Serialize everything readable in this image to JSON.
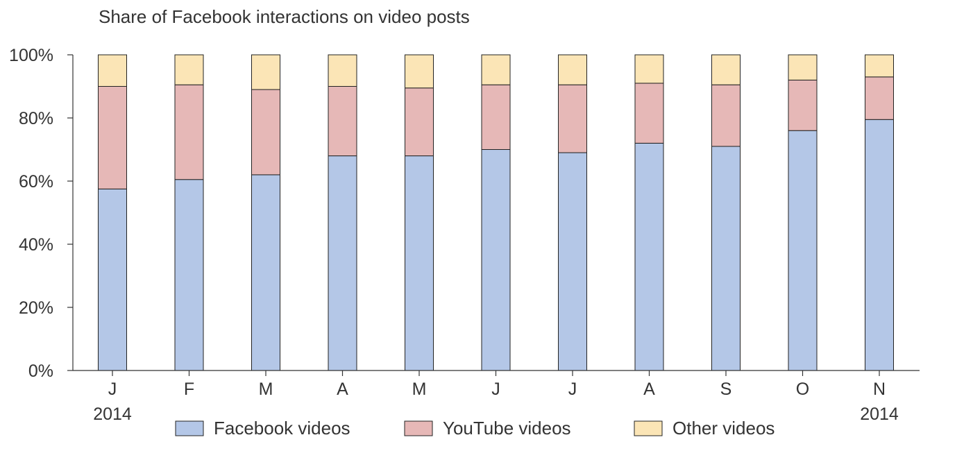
{
  "chart_data": {
    "type": "bar",
    "stacked": true,
    "title": "Share of Facebook interactions on video posts",
    "categories": [
      "J",
      "F",
      "M",
      "A",
      "M",
      "J",
      "J",
      "A",
      "S",
      "O",
      "N"
    ],
    "year_labels": [
      {
        "index": 0,
        "label": "2014"
      },
      {
        "index": 10,
        "label": "2014"
      }
    ],
    "series": [
      {
        "name": "Facebook videos",
        "color": "#b4c7e7",
        "values": [
          57.5,
          60.5,
          62,
          68,
          68,
          70,
          69,
          72,
          71,
          76,
          79.5
        ]
      },
      {
        "name": "YouTube videos",
        "color": "#e6b8b7",
        "values": [
          32.5,
          30,
          27,
          22,
          21.5,
          20.5,
          21.5,
          19,
          19.5,
          16,
          13.5
        ]
      },
      {
        "name": "Other videos",
        "color": "#fbe5b6",
        "values": [
          10,
          9.5,
          11,
          10,
          10.5,
          9.5,
          9.5,
          9,
          9.5,
          8,
          7
        ]
      }
    ],
    "ylim": [
      0,
      100
    ],
    "yticks": [
      "0%",
      "20%",
      "40%",
      "60%",
      "80%",
      "100%"
    ],
    "grid": false,
    "legend_position": "bottom"
  }
}
